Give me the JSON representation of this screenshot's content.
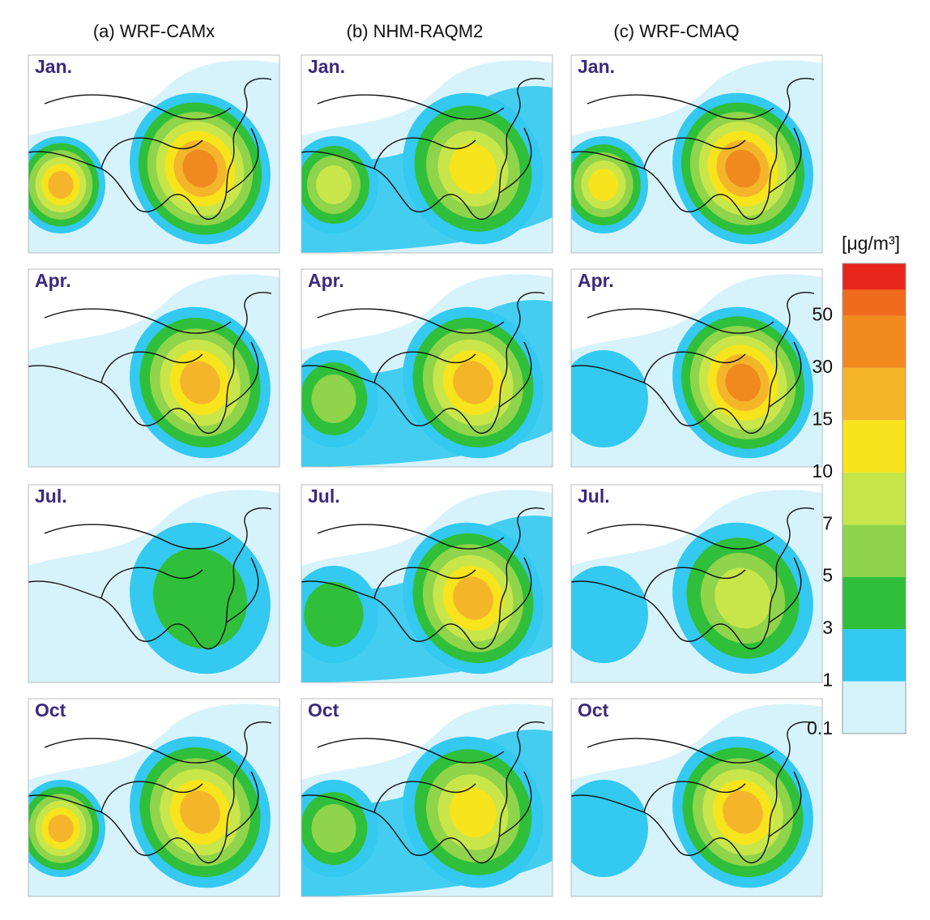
{
  "columns": [
    "(a) WRF-CAMx",
    "(b) NHM-RAQM2",
    "(c) WRF-CMAQ"
  ],
  "months": [
    "Jan.",
    "Apr.",
    "Jul.",
    "Oct"
  ],
  "colorbar": {
    "unit": "[μg/m³]",
    "levels": [
      0.1,
      1,
      3,
      5,
      7,
      10,
      15,
      30,
      50
    ],
    "colors": [
      "#d6f3fb",
      "#33c9f0",
      "#2fbf3a",
      "#8fd44a",
      "#c8e64a",
      "#f7e41c",
      "#f5b52a",
      "#f08a1f",
      "#f06a1e",
      "#e8251b"
    ]
  }
}
